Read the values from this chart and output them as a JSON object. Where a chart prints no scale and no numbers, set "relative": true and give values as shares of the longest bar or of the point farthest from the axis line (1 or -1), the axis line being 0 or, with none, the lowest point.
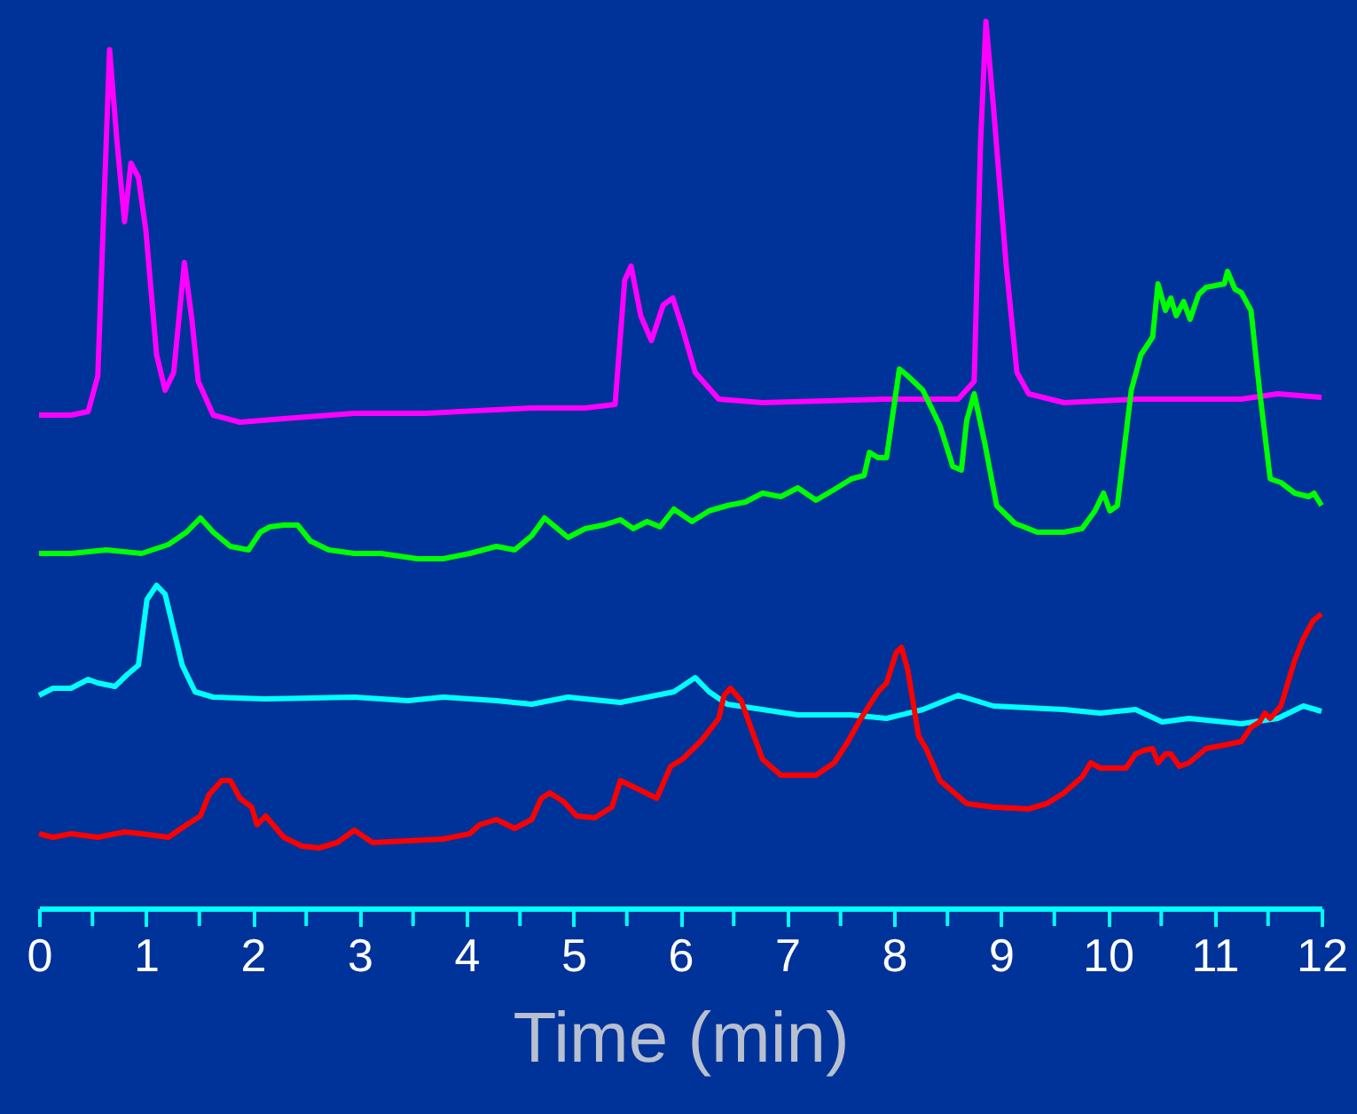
{
  "chart_data": {
    "type": "line",
    "relative": true,
    "xlabel": "Time (min)",
    "xlim": [
      0,
      12
    ],
    "xticks": [
      0,
      {
        "value": 0.5,
        "label": null
      },
      1,
      {
        "value": 1.5,
        "label": null
      },
      2,
      {
        "value": 2.5,
        "label": null
      },
      3,
      {
        "value": 3.5,
        "label": null
      },
      4,
      {
        "value": 4.5,
        "label": null
      },
      5,
      {
        "value": 5.5,
        "label": null
      },
      6,
      {
        "value": 6.5,
        "label": null
      },
      7,
      {
        "value": 7.5,
        "label": null
      },
      8,
      {
        "value": 8.5,
        "label": null
      },
      9,
      {
        "value": 9.5,
        "label": null
      },
      10,
      {
        "value": 10.5,
        "label": null
      },
      11,
      {
        "value": 11.5,
        "label": null
      },
      12
    ],
    "grid": false,
    "series": [
      {
        "color": "#ff00ff",
        "x": [
          0,
          0.3,
          0.46,
          0.55,
          0.66,
          0.73,
          0.8,
          0.86,
          0.93,
          1.0,
          1.1,
          1.18,
          1.26,
          1.36,
          1.43,
          1.49,
          1.63,
          1.88,
          2.29,
          2.95,
          3.62,
          4.61,
          5.11,
          5.39,
          5.48,
          5.54,
          5.63,
          5.73,
          5.84,
          5.93,
          6.02,
          6.14,
          6.36,
          6.77,
          7.93,
          8.6,
          8.75,
          8.81,
          8.86,
          8.93,
          9.05,
          9.15,
          9.26,
          9.59,
          10.26,
          11.25,
          11.59,
          12
        ],
        "values": [
          0.556,
          0.556,
          0.56,
          0.6,
          0.968,
          0.864,
          0.774,
          0.84,
          0.824,
          0.764,
          0.624,
          0.584,
          0.604,
          0.728,
          0.664,
          0.594,
          0.556,
          0.548,
          0.552,
          0.558,
          0.558,
          0.564,
          0.564,
          0.568,
          0.708,
          0.724,
          0.668,
          0.64,
          0.68,
          0.688,
          0.654,
          0.604,
          0.574,
          0.57,
          0.574,
          0.574,
          0.594,
          0.864,
          1.0,
          0.904,
          0.724,
          0.604,
          0.58,
          0.57,
          0.574,
          0.574,
          0.58,
          0.576
        ]
      },
      {
        "color": "#00ff00",
        "x": [
          0,
          0.3,
          0.63,
          0.96,
          1.21,
          1.38,
          1.51,
          1.63,
          1.79,
          1.96,
          2.07,
          2.16,
          2.29,
          2.42,
          2.54,
          2.71,
          2.95,
          3.2,
          3.54,
          3.78,
          4.03,
          4.28,
          4.45,
          4.61,
          4.73,
          4.81,
          4.95,
          5.11,
          5.28,
          5.44,
          5.56,
          5.69,
          5.81,
          5.94,
          6.11,
          6.27,
          6.44,
          6.61,
          6.77,
          6.94,
          7.1,
          7.27,
          7.44,
          7.6,
          7.72,
          7.77,
          7.85,
          7.93,
          8.05,
          8.13,
          8.27,
          8.43,
          8.55,
          8.63,
          8.68,
          8.75,
          8.85,
          8.96,
          9.13,
          9.34,
          9.59,
          9.76,
          9.88,
          9.96,
          10.02,
          10.09,
          10.22,
          10.31,
          10.42,
          10.47,
          10.54,
          10.59,
          10.64,
          10.71,
          10.77,
          10.85,
          10.92,
          11.09,
          11.12,
          11.19,
          11.25,
          11.34,
          11.42,
          11.52,
          11.62,
          11.75,
          11.88,
          11.93,
          12
        ],
        "values": [
          0.4,
          0.4,
          0.404,
          0.4,
          0.41,
          0.424,
          0.44,
          0.424,
          0.408,
          0.404,
          0.424,
          0.43,
          0.432,
          0.432,
          0.414,
          0.404,
          0.4,
          0.4,
          0.394,
          0.394,
          0.4,
          0.408,
          0.404,
          0.42,
          0.44,
          0.432,
          0.418,
          0.428,
          0.432,
          0.438,
          0.428,
          0.436,
          0.43,
          0.45,
          0.436,
          0.448,
          0.454,
          0.458,
          0.468,
          0.464,
          0.474,
          0.46,
          0.472,
          0.484,
          0.488,
          0.514,
          0.508,
          0.508,
          0.608,
          0.6,
          0.584,
          0.544,
          0.498,
          0.494,
          0.55,
          0.58,
          0.524,
          0.454,
          0.434,
          0.424,
          0.424,
          0.428,
          0.448,
          0.468,
          0.448,
          0.454,
          0.584,
          0.624,
          0.644,
          0.704,
          0.674,
          0.688,
          0.668,
          0.684,
          0.664,
          0.692,
          0.7,
          0.704,
          0.718,
          0.698,
          0.694,
          0.674,
          0.584,
          0.484,
          0.48,
          0.468,
          0.464,
          0.468,
          0.454
        ]
      },
      {
        "color": "#00ffff",
        "x": [
          0,
          0.13,
          0.3,
          0.46,
          0.55,
          0.71,
          0.83,
          0.93,
          1.01,
          1.1,
          1.18,
          1.26,
          1.34,
          1.46,
          1.63,
          2.12,
          2.95,
          3.45,
          3.78,
          4.28,
          4.61,
          4.95,
          5.44,
          5.94,
          6.14,
          6.27,
          6.44,
          7.1,
          7.6,
          7.93,
          8.27,
          8.6,
          8.93,
          9.59,
          9.93,
          10.26,
          10.51,
          10.76,
          11.25,
          11.59,
          11.83,
          12
        ],
        "values": [
          0.24,
          0.248,
          0.248,
          0.258,
          0.254,
          0.25,
          0.264,
          0.274,
          0.348,
          0.364,
          0.354,
          0.314,
          0.274,
          0.244,
          0.238,
          0.236,
          0.238,
          0.234,
          0.238,
          0.234,
          0.23,
          0.238,
          0.232,
          0.244,
          0.26,
          0.244,
          0.23,
          0.218,
          0.218,
          0.214,
          0.224,
          0.24,
          0.228,
          0.224,
          0.22,
          0.224,
          0.21,
          0.214,
          0.208,
          0.214,
          0.228,
          0.222
        ]
      },
      {
        "color": "#ff0000",
        "x": [
          0,
          0.13,
          0.3,
          0.55,
          0.8,
          0.96,
          1.21,
          1.38,
          1.51,
          1.59,
          1.71,
          1.79,
          1.88,
          1.99,
          2.04,
          2.12,
          2.29,
          2.46,
          2.62,
          2.79,
          2.95,
          3.12,
          3.45,
          3.78,
          4.03,
          4.12,
          4.28,
          4.45,
          4.61,
          4.7,
          4.78,
          4.91,
          5.03,
          5.2,
          5.36,
          5.44,
          5.61,
          5.78,
          5.91,
          6.02,
          6.19,
          6.27,
          6.36,
          6.41,
          6.47,
          6.57,
          6.69,
          6.77,
          6.94,
          7.27,
          7.44,
          7.57,
          7.68,
          7.85,
          7.93,
          8.02,
          8.07,
          8.13,
          8.23,
          8.3,
          8.43,
          8.68,
          8.93,
          9.26,
          9.43,
          9.59,
          9.76,
          9.84,
          9.93,
          10.17,
          10.26,
          10.34,
          10.42,
          10.47,
          10.54,
          10.59,
          10.67,
          10.76,
          10.92,
          11.09,
          11.25,
          11.34,
          11.42,
          11.47,
          11.52,
          11.62,
          11.75,
          11.83,
          11.92,
          12
        ],
        "values": [
          0.084,
          0.08,
          0.084,
          0.08,
          0.086,
          0.084,
          0.08,
          0.094,
          0.104,
          0.128,
          0.144,
          0.144,
          0.124,
          0.114,
          0.094,
          0.104,
          0.08,
          0.07,
          0.068,
          0.074,
          0.088,
          0.074,
          0.076,
          0.078,
          0.084,
          0.094,
          0.1,
          0.09,
          0.1,
          0.124,
          0.13,
          0.12,
          0.104,
          0.102,
          0.114,
          0.144,
          0.134,
          0.124,
          0.16,
          0.168,
          0.188,
          0.2,
          0.214,
          0.24,
          0.248,
          0.234,
          0.194,
          0.168,
          0.15,
          0.15,
          0.164,
          0.188,
          0.212,
          0.244,
          0.254,
          0.288,
          0.294,
          0.268,
          0.194,
          0.18,
          0.144,
          0.118,
          0.114,
          0.112,
          0.118,
          0.13,
          0.148,
          0.164,
          0.158,
          0.158,
          0.174,
          0.178,
          0.18,
          0.164,
          0.174,
          0.174,
          0.16,
          0.164,
          0.18,
          0.184,
          0.188,
          0.204,
          0.21,
          0.22,
          0.214,
          0.228,
          0.28,
          0.304,
          0.324,
          0.332
        ]
      }
    ]
  }
}
